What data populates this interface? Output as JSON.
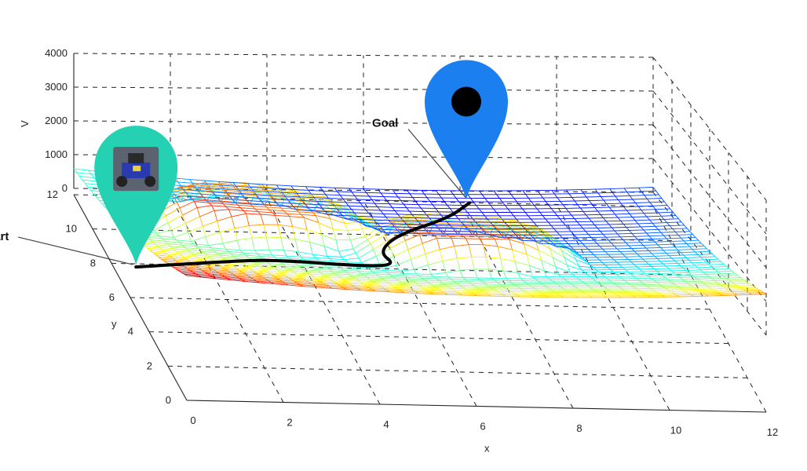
{
  "chart_data": {
    "type": "surface",
    "xlabel": "x",
    "ylabel": "y",
    "zlabel": "V",
    "xlim": [
      0,
      12
    ],
    "ylim": [
      0,
      12
    ],
    "zlim": [
      0,
      4000
    ],
    "x_ticks": [
      "0",
      "2",
      "4",
      "6",
      "8",
      "10",
      "12"
    ],
    "y_ticks": [
      "0",
      "2",
      "4",
      "6",
      "8",
      "10",
      "12"
    ],
    "z_ticks": [
      "0",
      "1000",
      "2000",
      "3000",
      "4000"
    ],
    "grid": true,
    "surface": {
      "goal": [
        8,
        11
      ],
      "base_at_corner": 1650,
      "obstacles": [
        {
          "center": [
            3.0,
            7.6
          ],
          "radius": 1.7,
          "height": 900
        },
        {
          "center": [
            6.8,
            5.6
          ],
          "radius": 1.6,
          "height": 900
        }
      ],
      "colormap": "jet-reversed"
    },
    "path": [
      [
        0.0,
        5.4
      ],
      [
        1.9,
        5.9
      ],
      [
        3.0,
        6.1
      ],
      [
        4.7,
        5.6
      ],
      [
        5.45,
        5.7
      ],
      [
        5.3,
        6.8
      ],
      [
        6.0,
        8.3
      ],
      [
        7.3,
        9.7
      ],
      [
        8.0,
        11.0
      ]
    ],
    "annotations": [
      {
        "text": "Start",
        "point": [
          0.0,
          5.4
        ],
        "z": 0
      },
      {
        "text": "Goal",
        "point": [
          8.0,
          11.0
        ],
        "z": 0
      }
    ],
    "markers": [
      {
        "name": "start-marker",
        "point": [
          0.0,
          5.4
        ],
        "color": "#24d1b3",
        "content": "robot-photo"
      },
      {
        "name": "goal-marker",
        "point": [
          8.0,
          11.0
        ],
        "color": "#1b7fef",
        "content": "black-dot"
      }
    ]
  }
}
